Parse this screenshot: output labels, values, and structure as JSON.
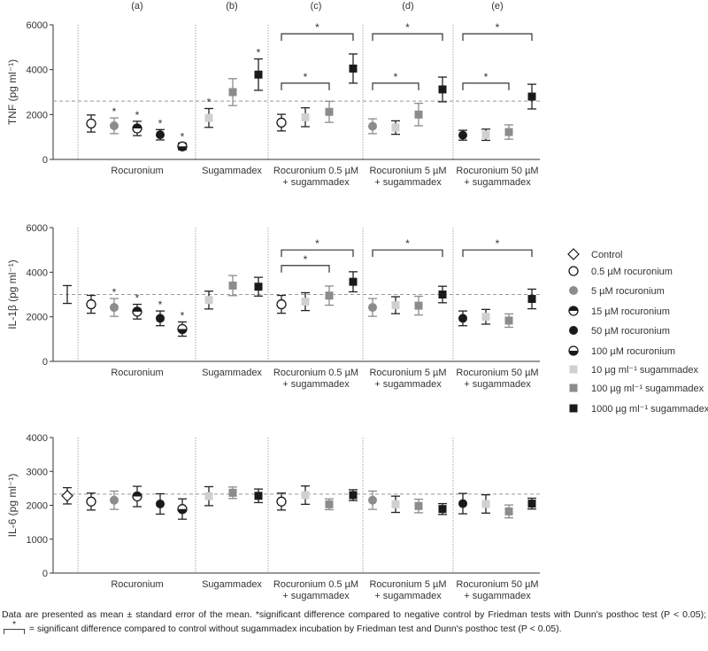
{
  "chart_data": [
    {
      "type": "scatter",
      "title": "TNF",
      "ylabel": "TNF (pg ml⁻¹)",
      "ylim": [
        0,
        6000
      ],
      "yticks": [
        "0",
        "2000",
        "4000",
        "6000"
      ],
      "control_line": 2600,
      "panel_letters": [
        "(a)",
        "(b)",
        "(c)",
        "(d)",
        "(e)"
      ],
      "groups": [
        "Rocuronium",
        "Sugammadex",
        "Rocuronium 0.5 µM\n+ sugammadex",
        "Rocuronium 5 µM\n+ sugammadex",
        "Rocuronium 50 µM\n+ sugammadex"
      ],
      "points": [
        {
          "g": 0,
          "m": "r05",
          "v": 1600,
          "e": 380
        },
        {
          "g": 0,
          "m": "r5",
          "v": 1500,
          "e": 350,
          "star": true
        },
        {
          "g": 0,
          "m": "r15",
          "v": 1380,
          "e": 320,
          "star": true
        },
        {
          "g": 0,
          "m": "r50",
          "v": 1100,
          "e": 230,
          "star": true
        },
        {
          "g": 0,
          "m": "r100",
          "v": 580,
          "e": 150,
          "star": true
        },
        {
          "g": 1,
          "m": "s10",
          "v": 1850,
          "e": 420,
          "star": true
        },
        {
          "g": 1,
          "m": "s100",
          "v": 3000,
          "e": 600
        },
        {
          "g": 1,
          "m": "s1000",
          "v": 3780,
          "e": 700,
          "star": true
        },
        {
          "g": 2,
          "m": "r05",
          "v": 1640,
          "e": 370
        },
        {
          "g": 2,
          "m": "s10",
          "v": 1880,
          "e": 420
        },
        {
          "g": 2,
          "m": "s100",
          "v": 2120,
          "e": 470
        },
        {
          "g": 2,
          "m": "s1000",
          "v": 4050,
          "e": 650
        },
        {
          "g": 3,
          "m": "r5",
          "v": 1480,
          "e": 330
        },
        {
          "g": 3,
          "m": "s10",
          "v": 1420,
          "e": 300
        },
        {
          "g": 3,
          "m": "s100",
          "v": 2000,
          "e": 500
        },
        {
          "g": 3,
          "m": "s1000",
          "v": 3120,
          "e": 550
        },
        {
          "g": 4,
          "m": "r50",
          "v": 1080,
          "e": 220
        },
        {
          "g": 4,
          "m": "s10",
          "v": 1100,
          "e": 250
        },
        {
          "g": 4,
          "m": "s100",
          "v": 1220,
          "e": 320
        },
        {
          "g": 4,
          "m": "s1000",
          "v": 2800,
          "e": 550
        }
      ],
      "brackets": [
        {
          "from": 8,
          "to": 11,
          "y": 5600,
          "label": "*"
        },
        {
          "from": 8,
          "to": 10,
          "y": 3400,
          "label": "*"
        },
        {
          "from": 12,
          "to": 15,
          "y": 5600,
          "label": "*"
        },
        {
          "from": 12,
          "to": 14,
          "y": 3400,
          "label": "*"
        },
        {
          "from": 16,
          "to": 19,
          "y": 5600,
          "label": "*"
        },
        {
          "from": 16,
          "to": 18,
          "y": 3400,
          "label": "*"
        }
      ]
    },
    {
      "type": "scatter",
      "title": "IL-1β",
      "ylabel": "IL-1β (pg ml⁻¹)",
      "ylim": [
        0,
        6000
      ],
      "yticks": [
        "0",
        "2000",
        "4000",
        "6000"
      ],
      "control_line": 3000,
      "groups": [
        "Rocuronium",
        "Sugammadex",
        "Rocuronium 0.5 µM\n+ sugammadex",
        "Rocuronium 5 µM\n+ sugammadex",
        "Rocuronium 50 µM\n+ sugammadex"
      ],
      "points": [
        {
          "g": -1,
          "m": "none",
          "v": 3000,
          "e": 400
        },
        {
          "g": 0,
          "m": "r05",
          "v": 2560,
          "e": 400
        },
        {
          "g": 0,
          "m": "r5",
          "v": 2420,
          "e": 400,
          "star": true
        },
        {
          "g": 0,
          "m": "r15",
          "v": 2230,
          "e": 330,
          "star": true
        },
        {
          "g": 0,
          "m": "r50",
          "v": 1930,
          "e": 330,
          "star": true
        },
        {
          "g": 0,
          "m": "r100",
          "v": 1450,
          "e": 320,
          "star": true
        },
        {
          "g": 1,
          "m": "s10",
          "v": 2750,
          "e": 400
        },
        {
          "g": 1,
          "m": "s100",
          "v": 3400,
          "e": 450
        },
        {
          "g": 1,
          "m": "s1000",
          "v": 3350,
          "e": 420
        },
        {
          "g": 2,
          "m": "r05",
          "v": 2560,
          "e": 400
        },
        {
          "g": 2,
          "m": "s10",
          "v": 2680,
          "e": 400
        },
        {
          "g": 2,
          "m": "s100",
          "v": 2950,
          "e": 430
        },
        {
          "g": 2,
          "m": "s1000",
          "v": 3570,
          "e": 450
        },
        {
          "g": 3,
          "m": "r5",
          "v": 2420,
          "e": 400
        },
        {
          "g": 3,
          "m": "s10",
          "v": 2520,
          "e": 380
        },
        {
          "g": 3,
          "m": "s100",
          "v": 2500,
          "e": 420
        },
        {
          "g": 3,
          "m": "s1000",
          "v": 3000,
          "e": 370
        },
        {
          "g": 4,
          "m": "r50",
          "v": 1930,
          "e": 330
        },
        {
          "g": 4,
          "m": "s10",
          "v": 2000,
          "e": 330
        },
        {
          "g": 4,
          "m": "s100",
          "v": 1830,
          "e": 300
        },
        {
          "g": 4,
          "m": "s1000",
          "v": 2800,
          "e": 440
        }
      ],
      "brackets": [
        {
          "from": 9,
          "to": 12,
          "y": 5000,
          "label": "*"
        },
        {
          "from": 9,
          "to": 11,
          "y": 4300,
          "label": "*"
        },
        {
          "from": 13,
          "to": 16,
          "y": 5000,
          "label": "*"
        },
        {
          "from": 17,
          "to": 20,
          "y": 5000,
          "label": "*"
        }
      ]
    },
    {
      "type": "scatter",
      "title": "IL-6",
      "ylabel": "IL-6 (pg ml⁻¹)",
      "ylim": [
        0,
        4000
      ],
      "yticks": [
        "0",
        "1000",
        "2000",
        "3000",
        "4000"
      ],
      "control_line": 2330,
      "groups": [
        "Rocuronium",
        "Sugammadex",
        "Rocuronium 0.5 µM\n+ sugammadex",
        "Rocuronium 5 µM\n+ sugammadex",
        "Rocuronium 50 µM\n+ sugammadex"
      ],
      "points": [
        {
          "g": -1,
          "m": "ctrl",
          "v": 2280,
          "e": 240
        },
        {
          "g": 0,
          "m": "r05",
          "v": 2110,
          "e": 250
        },
        {
          "g": 0,
          "m": "r5",
          "v": 2150,
          "e": 270
        },
        {
          "g": 0,
          "m": "r15",
          "v": 2260,
          "e": 300
        },
        {
          "g": 0,
          "m": "r50",
          "v": 2040,
          "e": 300
        },
        {
          "g": 0,
          "m": "r100",
          "v": 1890,
          "e": 300
        },
        {
          "g": 1,
          "m": "s10",
          "v": 2270,
          "e": 280
        },
        {
          "g": 1,
          "m": "s100",
          "v": 2370,
          "e": 170
        },
        {
          "g": 1,
          "m": "s1000",
          "v": 2280,
          "e": 200
        },
        {
          "g": 2,
          "m": "r05",
          "v": 2110,
          "e": 250
        },
        {
          "g": 2,
          "m": "s10",
          "v": 2300,
          "e": 270
        },
        {
          "g": 2,
          "m": "s100",
          "v": 2030,
          "e": 160
        },
        {
          "g": 2,
          "m": "s1000",
          "v": 2300,
          "e": 160
        },
        {
          "g": 3,
          "m": "r5",
          "v": 2150,
          "e": 270
        },
        {
          "g": 3,
          "m": "s10",
          "v": 2030,
          "e": 240
        },
        {
          "g": 3,
          "m": "s100",
          "v": 1980,
          "e": 200
        },
        {
          "g": 3,
          "m": "s1000",
          "v": 1890,
          "e": 160
        },
        {
          "g": 4,
          "m": "r50",
          "v": 2050,
          "e": 300
        },
        {
          "g": 4,
          "m": "s10",
          "v": 2040,
          "e": 270
        },
        {
          "g": 4,
          "m": "s100",
          "v": 1820,
          "e": 190
        },
        {
          "g": 4,
          "m": "s1000",
          "v": 2050,
          "e": 160
        }
      ],
      "brackets": []
    }
  ],
  "legend": [
    {
      "m": "ctrl",
      "label": "Control"
    },
    {
      "m": "r05",
      "label": "0.5 µM rocuronium"
    },
    {
      "m": "r5",
      "label": "5 µM rocuronium"
    },
    {
      "m": "r15",
      "label": "15 µM rocuronium"
    },
    {
      "m": "r50",
      "label": "50 µM rocuronium"
    },
    {
      "m": "r100",
      "label": "100 µM rocuronium"
    },
    {
      "m": "s10",
      "label": "10 µg ml⁻¹ sugammadex"
    },
    {
      "m": "s100",
      "label": "100 µg ml⁻¹ sugammadex"
    },
    {
      "m": "s1000",
      "label": "1000 µg ml⁻¹ sugammadex"
    }
  ],
  "colors": {
    "gray": "#8c8c8c",
    "light": "#d0d0d0",
    "dark": "#1a1a1a",
    "dashed": "#999999"
  },
  "footnote": {
    "line1": "Data are presented as mean ± standard error of the mean. *significant difference compared to negative control by Friedman tests with Dunn's posthoc test (P < 0.05);",
    "bracket_star": "*",
    "line2": "= significant difference compared to control without sugammadex incubation by Friedman test and Dunn's posthoc test (P < 0.05)."
  }
}
